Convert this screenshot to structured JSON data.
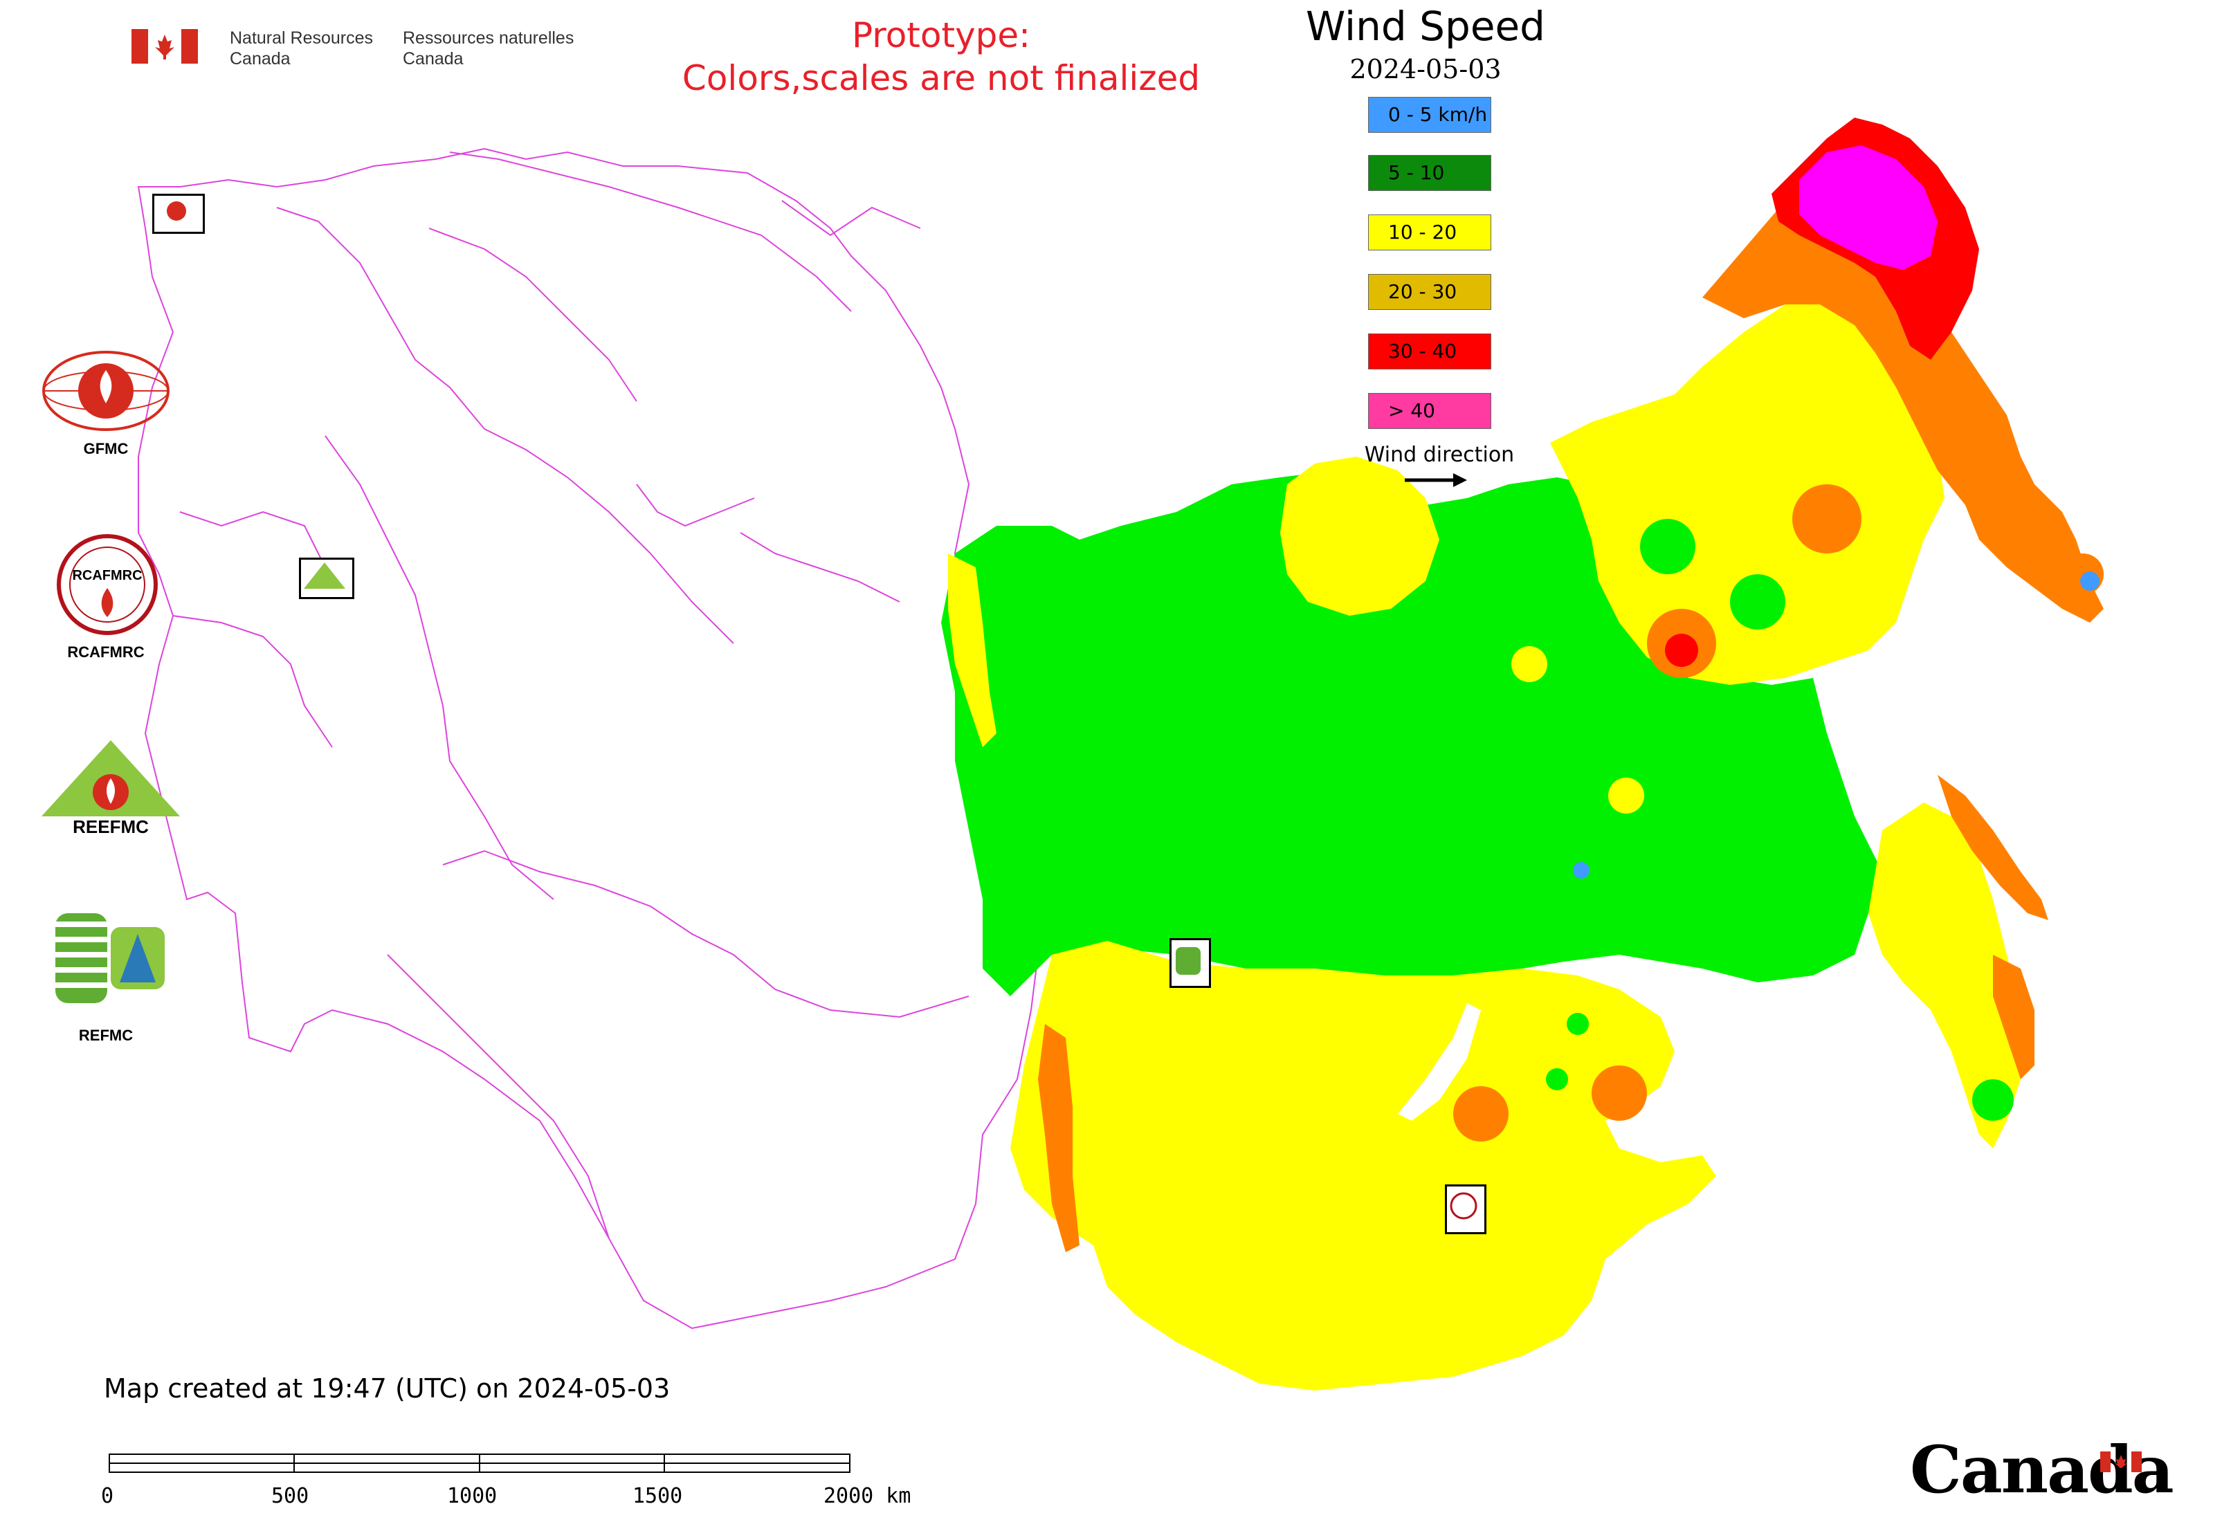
{
  "header": {
    "dept_en_line1": "Natural Resources",
    "dept_en_line2": "Canada",
    "dept_fr_line1": "Ressources naturelles",
    "dept_fr_line2": "Canada",
    "prototype_line1": "Prototype:",
    "prototype_line2": "Colors,scales are not finalized"
  },
  "legend": {
    "title": "Wind Speed",
    "date": "2024-05-03",
    "classes": [
      {
        "label": "0 - 5 km/h",
        "color": "#3f9bff"
      },
      {
        "label": "5 - 10",
        "color": "#0b8a0b"
      },
      {
        "label": "10 - 20",
        "color": "#ffff00"
      },
      {
        "label": "20 - 30",
        "color": "#e0bb00"
      },
      {
        "label": "30 - 40",
        "color": "#ff0000"
      },
      {
        "label": "> 40",
        "color": "#ff3aa0"
      }
    ],
    "wind_direction_label": "Wind direction"
  },
  "logos": {
    "gfmc": "GFMC",
    "rcafmrc": "RCAFMRC",
    "reefmc": "REEFMC",
    "refmc": "REFMC",
    "reefmc_logo_text": "REEFMC",
    "rcafmrc_logo_text": "RCAFMRC"
  },
  "map_colors": {
    "green": "#00f000",
    "yellow": "#ffff00",
    "orange": "#ff8000",
    "red": "#ff0000",
    "magenta": "#ff00ff",
    "boundary": "#dd44dd"
  },
  "footer": {
    "created": "Map created at 19:47 (UTC) on 2024-05-03",
    "scale_ticks": [
      "0",
      "500",
      "1000",
      "1500",
      "2000 km"
    ],
    "wordmark": "Canada"
  }
}
